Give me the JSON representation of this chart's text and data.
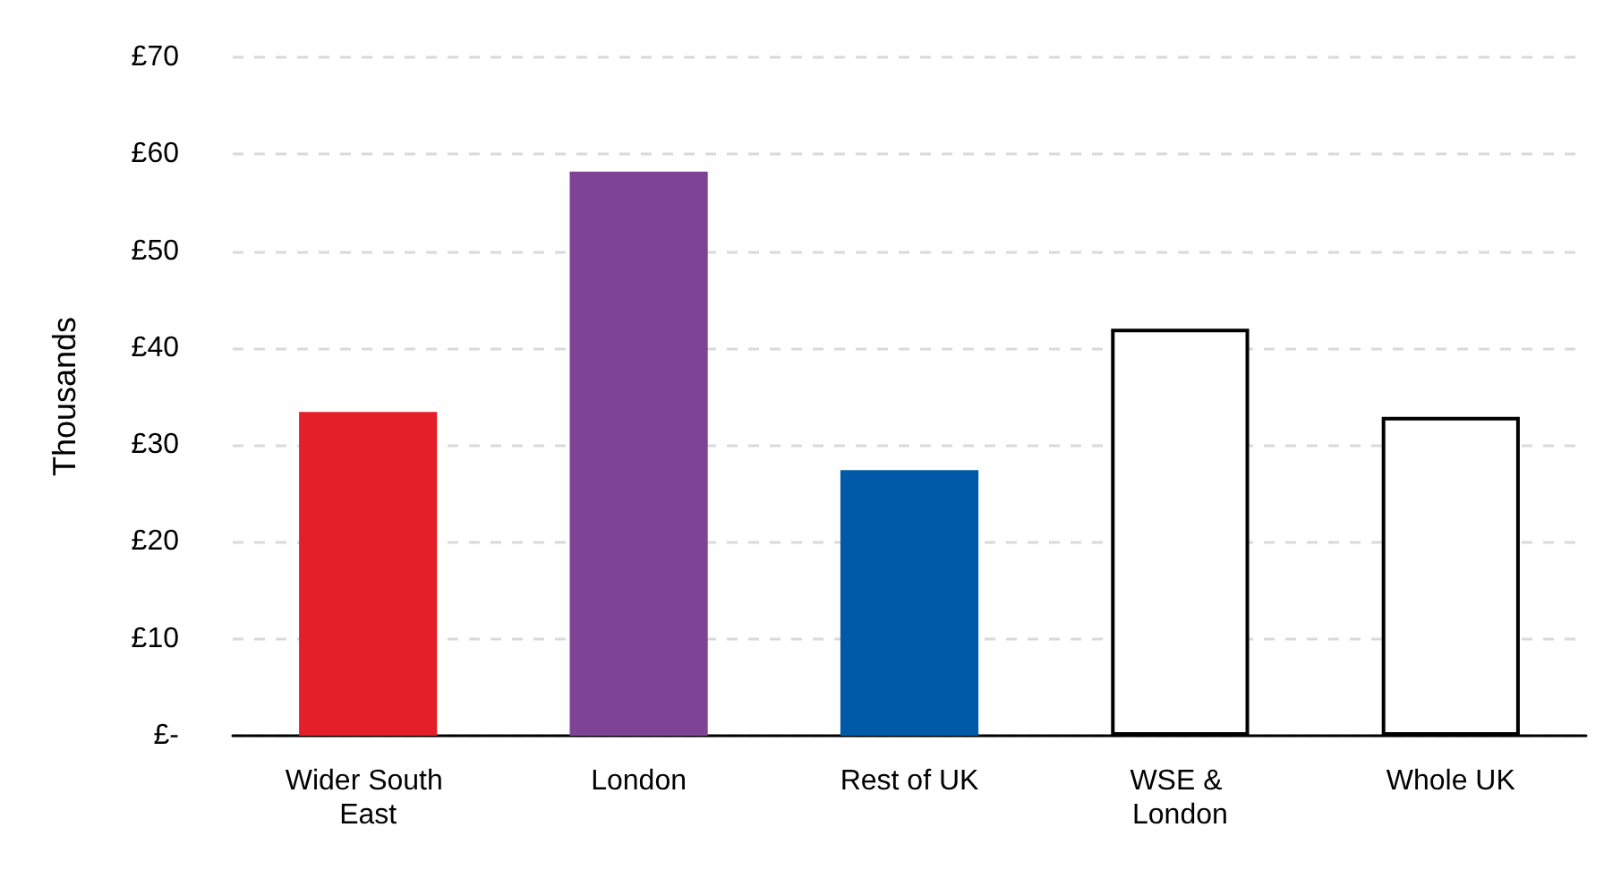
{
  "chart_data": {
    "type": "bar",
    "ylabel": "Thousands",
    "categories": [
      "Wider South East",
      "London",
      "Rest of UK",
      "WSE & London",
      "Whole UK"
    ],
    "values": [
      33.4,
      58.2,
      27.4,
      42.0,
      32.9
    ],
    "colors": [
      "#e41f2a",
      "#7e4395",
      "#005aa8",
      "#ffffff",
      "#ffffff"
    ],
    "ylim": [
      0,
      70
    ],
    "yticks": [
      {
        "value": 0,
        "label": "£-"
      },
      {
        "value": 10,
        "label": "£10"
      },
      {
        "value": 20,
        "label": "£20"
      },
      {
        "value": 30,
        "label": "£30"
      },
      {
        "value": 40,
        "label": "£40"
      },
      {
        "value": 50,
        "label": "£50"
      },
      {
        "value": 60,
        "label": "£60"
      },
      {
        "value": 70,
        "label": "£70"
      }
    ],
    "grid": "y"
  }
}
